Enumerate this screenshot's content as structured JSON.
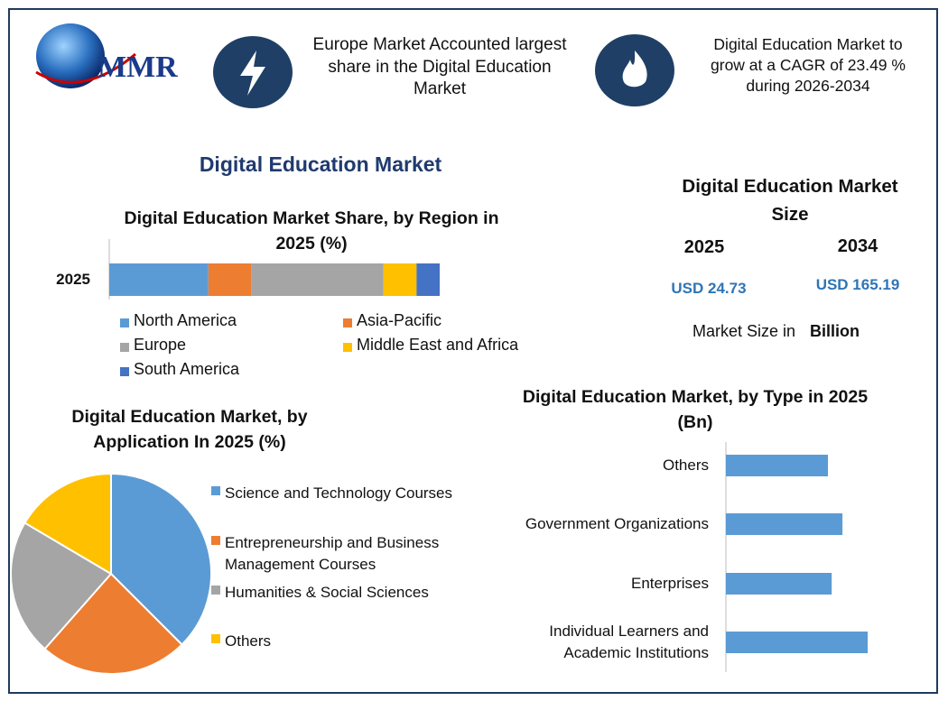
{
  "header": {
    "logo": "MMR",
    "left_fact": "Europe Market Accounted largest share in the Digital Education Market",
    "right_fact": "Digital Education Market to grow at a CAGR of 23.49 % during 2026-2034"
  },
  "title": "Digital Education Market",
  "market_size": {
    "title": "Digital Education Market Size",
    "years": [
      "2025",
      "2034"
    ],
    "values": [
      "USD 24.73",
      "USD 165.19"
    ],
    "note": "Market Size in",
    "unit": "Billion"
  },
  "chart_data": [
    {
      "type": "stacked_bar",
      "title": "Digital Education Market Share, by Region in 2025 (%)",
      "categories": [
        "2025"
      ],
      "xlim": [
        0,
        100
      ],
      "series": [
        {
          "name": "North America",
          "color": "#5b9bd5",
          "values": [
            30
          ]
        },
        {
          "name": "Asia-Pacific",
          "color": "#ed7d31",
          "values": [
            13
          ]
        },
        {
          "name": "Europe",
          "color": "#a5a5a5",
          "values": [
            40
          ]
        },
        {
          "name": "Middle East and Africa",
          "color": "#ffc000",
          "values": [
            10
          ]
        },
        {
          "name": "South America",
          "color": "#4472c4",
          "values": [
            7
          ]
        }
      ]
    },
    {
      "type": "pie",
      "title": "Digital Education Market, by Application In 2025 (%)",
      "categories": [
        "Science and Technology Courses",
        "Entrepreneurship and Business Management Courses",
        "Humanities & Social Sciences",
        "Others"
      ],
      "values": [
        37.5,
        24,
        22,
        16.5
      ],
      "colors": [
        "#5b9bd5",
        "#ed7d31",
        "#a5a5a5",
        "#ffc000"
      ]
    },
    {
      "type": "hbar",
      "title": "Digital Education Market, by Type in 2025 (Bn)",
      "categories": [
        "Others",
        "Government Organizations",
        "Enterprises",
        "Individual Learners and Academic Institutions"
      ],
      "values": [
        5.41,
        6.18,
        5.61,
        7.52
      ],
      "color": "#5b9bd5",
      "xlim": [
        0,
        9
      ]
    }
  ]
}
